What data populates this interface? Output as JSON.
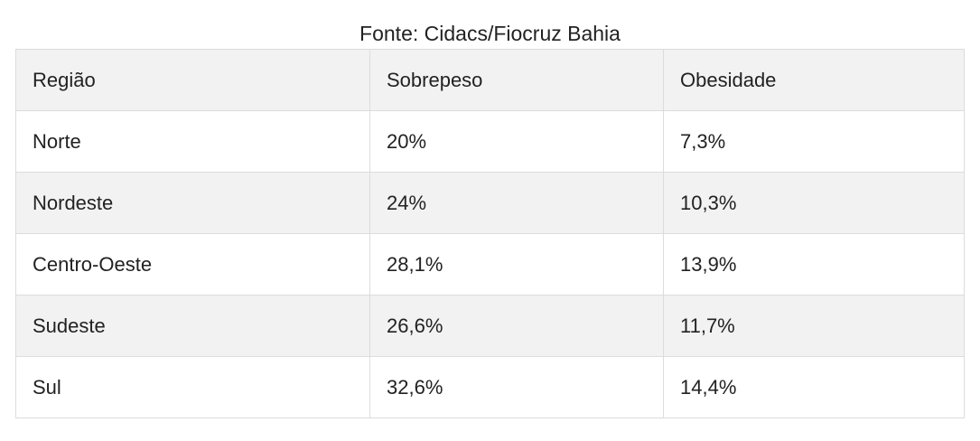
{
  "caption": "Fonte: Cidacs/Fiocruz Bahia",
  "table": {
    "headers": [
      "Região",
      "Sobrepeso",
      "Obesidade"
    ],
    "rows": [
      [
        "Norte",
        "20%",
        "7,3%"
      ],
      [
        "Nordeste",
        "24%",
        "10,3%"
      ],
      [
        "Centro-Oeste",
        "28,1%",
        "13,9%"
      ],
      [
        "Sudeste",
        "26,6%",
        "11,7%"
      ],
      [
        "Sul",
        "32,6%",
        "14,4%"
      ]
    ]
  },
  "colors": {
    "header_bg": "#f2f2f2",
    "stripe_bg": "#f2f2f2",
    "border": "#dcdcdc",
    "text": "#222222"
  }
}
